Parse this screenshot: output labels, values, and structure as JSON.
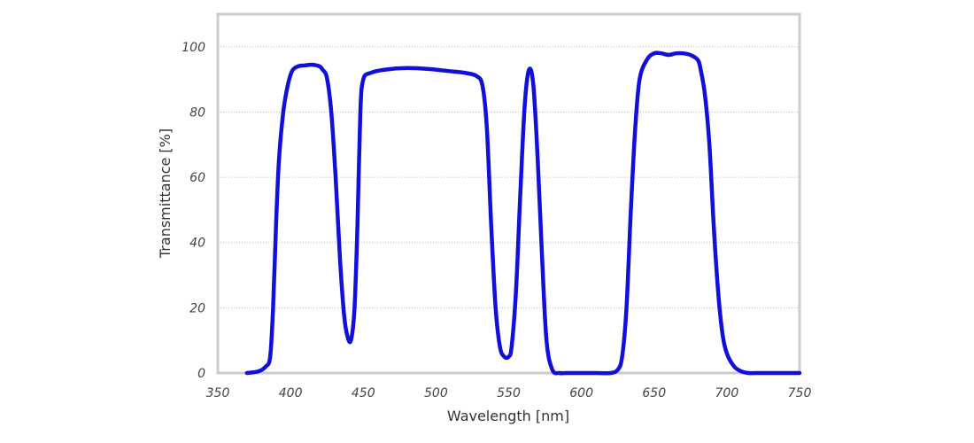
{
  "chart_data": {
    "type": "line",
    "xlabel": "Wavelength [nm]",
    "ylabel": "Transmittance [%]",
    "xlim": [
      350,
      750
    ],
    "ylim": [
      0,
      110
    ],
    "x_ticks": [
      350,
      400,
      450,
      500,
      550,
      600,
      650,
      700,
      750
    ],
    "y_ticks": [
      0,
      20,
      40,
      60,
      80,
      100
    ],
    "grid": "horizontal",
    "legend": "none",
    "series": [
      {
        "color": "#1010d8",
        "x": [
          370,
          378,
          383,
          386,
          388,
          390,
          392,
          395,
          398,
          401,
          405,
          410,
          415,
          420,
          422,
          425,
          428,
          431,
          434,
          437,
          440,
          442,
          444,
          446,
          448,
          450,
          455,
          465,
          480,
          495,
          510,
          520,
          528,
          532,
          535,
          538,
          541,
          544,
          547,
          550,
          552,
          555,
          558,
          561,
          564,
          567,
          570,
          573,
          576,
          580,
          585,
          590,
          600,
          610,
          620,
          625,
          628,
          631,
          634,
          637,
          640,
          645,
          650,
          655,
          660,
          665,
          670,
          675,
          680,
          682,
          685,
          688,
          691,
          694,
          697,
          700,
          705,
          710,
          715,
          720,
          730,
          740,
          750
        ],
        "y": [
          0,
          0.5,
          2,
          5,
          20,
          45,
          65,
          80,
          88,
          92.5,
          94,
          94.3,
          94.5,
          94,
          93,
          90.5,
          80,
          60,
          35,
          17,
          10,
          11,
          20,
          45,
          80,
          90,
          92,
          93,
          93.5,
          93.2,
          92.5,
          92,
          91,
          88,
          75,
          45,
          20,
          8,
          5,
          5,
          8,
          25,
          55,
          82,
          93,
          88,
          65,
          35,
          10,
          1,
          0,
          0,
          0,
          0,
          0,
          1,
          5,
          20,
          50,
          75,
          90,
          96,
          98,
          98,
          97.5,
          98,
          98,
          97.5,
          96,
          93,
          85,
          70,
          45,
          25,
          12,
          6,
          2,
          0.5,
          0,
          0,
          0,
          0,
          0
        ]
      }
    ]
  }
}
